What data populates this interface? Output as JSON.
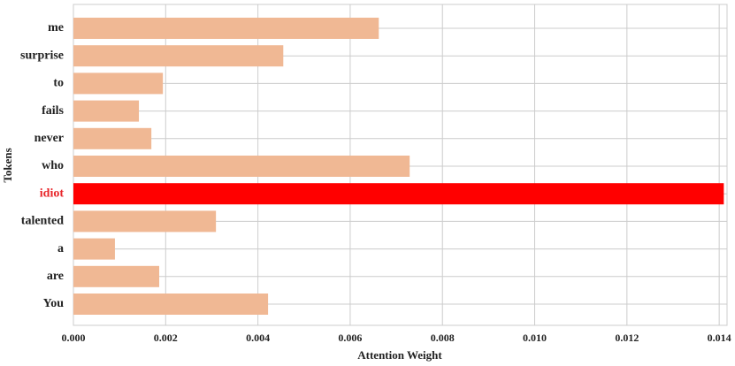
{
  "chart_data": {
    "type": "barh",
    "categories": [
      "me",
      "surprise",
      "to",
      "fails",
      "never",
      "who",
      "idiot",
      "talented",
      "a",
      "are",
      "You"
    ],
    "values": [
      0.00662,
      0.00455,
      0.00194,
      0.00142,
      0.00169,
      0.00729,
      0.0141,
      0.00309,
      0.0009,
      0.00186,
      0.00422
    ],
    "colors": [
      "#f0b894",
      "#f0b894",
      "#f0b894",
      "#f0b894",
      "#f0b894",
      "#f0b894",
      "#ff0000",
      "#f0b894",
      "#f0b894",
      "#f0b894",
      "#f0b894"
    ],
    "label_colors": [
      "#222222",
      "#222222",
      "#222222",
      "#222222",
      "#222222",
      "#222222",
      "#e8262a",
      "#222222",
      "#222222",
      "#222222",
      "#222222"
    ],
    "xlabel": "Attention Weight",
    "ylabel": "Tokens",
    "xlim": [
      0,
      0.01417
    ],
    "xticks": [
      {
        "value": 0,
        "label": "0.000"
      },
      {
        "value": 0.002,
        "label": "0.002"
      },
      {
        "value": 0.004,
        "label": "0.004"
      },
      {
        "value": 0.006,
        "label": "0.006"
      },
      {
        "value": 0.008,
        "label": "0.008"
      },
      {
        "value": 0.01,
        "label": "0.010"
      },
      {
        "value": 0.012,
        "label": "0.012"
      },
      {
        "value": 0.014,
        "label": "0.014"
      }
    ],
    "grid": true
  }
}
